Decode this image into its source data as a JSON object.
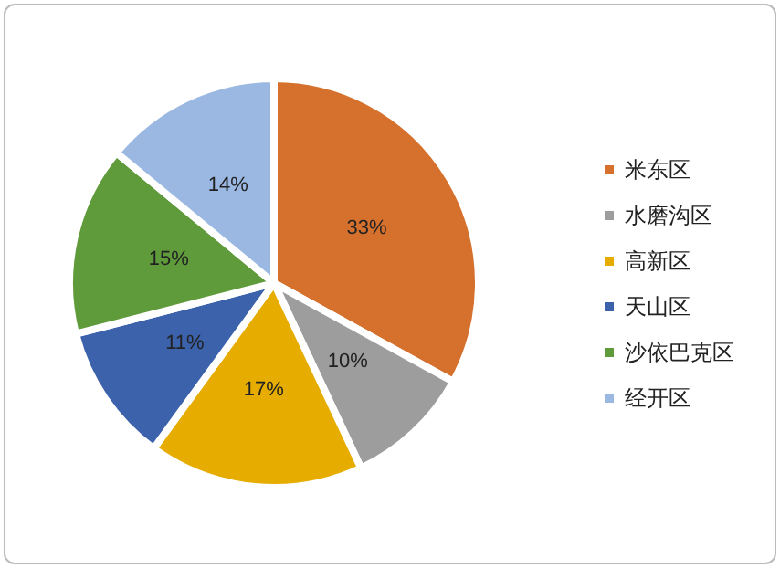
{
  "chart_data": {
    "type": "pie",
    "categories": [
      "米东区",
      "水磨沟区",
      "高新区",
      "天山区",
      "沙依巴克区",
      "经开区"
    ],
    "values": [
      33,
      10,
      17,
      11,
      15,
      14
    ],
    "colors": [
      "#d5702d",
      "#9d9d9d",
      "#e6ad00",
      "#3c62ac",
      "#5f9a3b",
      "#9ab8e2"
    ],
    "value_labels": [
      "33%",
      "10%",
      "17%",
      "11%",
      "15%",
      "14%"
    ],
    "legend": "right"
  }
}
